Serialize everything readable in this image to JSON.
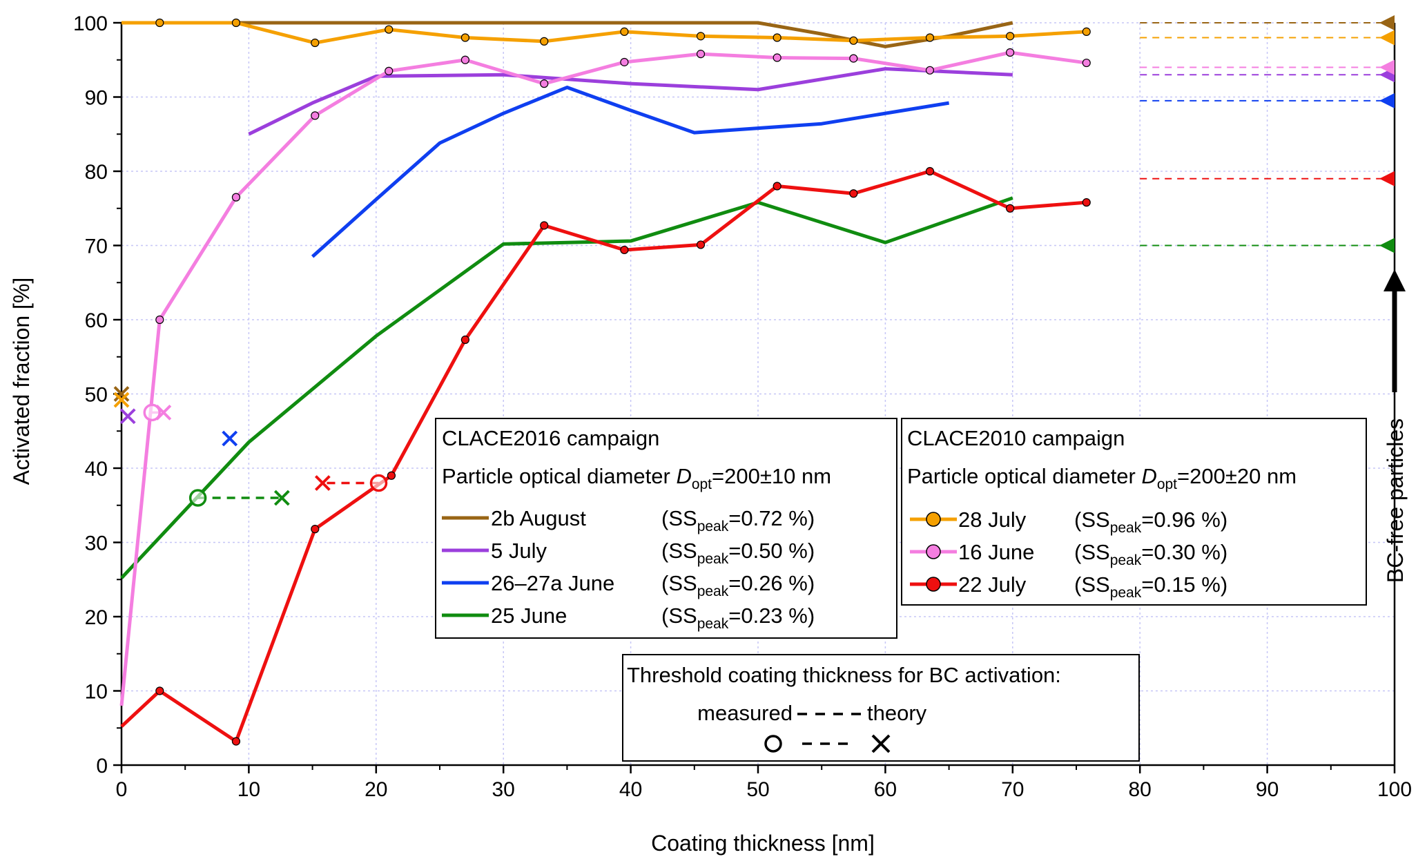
{
  "chart_data": {
    "type": "line",
    "xlabel": "Coating thickness [nm]",
    "ylabel": "Activated fraction [%]",
    "xlim": [
      0,
      100
    ],
    "ylim": [
      0,
      100
    ],
    "xticks": [
      "0",
      "10",
      "20",
      "30",
      "40",
      "50",
      "60",
      "70",
      "80",
      "90",
      "100"
    ],
    "yticks": [
      "0",
      "10",
      "20",
      "30",
      "40",
      "50",
      "60",
      "70",
      "80",
      "90",
      "100"
    ],
    "grid": true,
    "bc_free_label": "BC-free particles",
    "series": [
      {
        "name": "2b August",
        "ss": "0.72 %",
        "campaign": "CLACE2016",
        "color": "#996515",
        "markers": false,
        "points": [
          [
            0,
            100
          ],
          [
            10,
            100
          ],
          [
            20,
            100
          ],
          [
            30,
            100
          ],
          [
            40,
            100
          ],
          [
            50,
            100
          ],
          [
            55,
            98.5
          ],
          [
            60,
            96.8
          ],
          [
            65,
            98.2
          ],
          [
            70,
            100
          ]
        ],
        "bc_free": 100
      },
      {
        "name": "5 July",
        "ss": "0.50 %",
        "campaign": "CLACE2016",
        "color": "#9b3fdc",
        "markers": false,
        "points": [
          [
            10,
            85
          ],
          [
            15,
            89.2
          ],
          [
            20,
            92.8
          ],
          [
            30,
            93
          ],
          [
            40,
            91.8
          ],
          [
            50,
            91
          ],
          [
            60,
            93.8
          ],
          [
            70,
            93
          ]
        ],
        "bc_free": 93
      },
      {
        "name": "26–27a June",
        "ss": "0.26 %",
        "campaign": "CLACE2016",
        "color": "#0f3ff0",
        "markers": false,
        "points": [
          [
            15,
            68.5
          ],
          [
            20,
            76.2
          ],
          [
            25,
            83.8
          ],
          [
            30,
            87.8
          ],
          [
            35,
            91.3
          ],
          [
            40,
            88.2
          ],
          [
            45,
            85.2
          ],
          [
            55,
            86.4
          ],
          [
            65,
            89.2
          ]
        ],
        "bc_free": 89.5
      },
      {
        "name": "25 June",
        "ss": "0.23 %",
        "campaign": "CLACE2016",
        "color": "#108c10",
        "markers": false,
        "points": [
          [
            0,
            25.2
          ],
          [
            10,
            43.5
          ],
          [
            20,
            57.8
          ],
          [
            30,
            70.2
          ],
          [
            40,
            70.6
          ],
          [
            50,
            75.8
          ],
          [
            60,
            70.4
          ],
          [
            70,
            76.4
          ]
        ],
        "bc_free": 70
      },
      {
        "name": "28 July",
        "ss": "0.96 %",
        "campaign": "CLACE2010",
        "color": "#f5a000",
        "markers": true,
        "points": [
          [
            0,
            100
          ],
          [
            3,
            100
          ],
          [
            9,
            100
          ],
          [
            15.2,
            97.3
          ],
          [
            21,
            99.1
          ],
          [
            27,
            98
          ],
          [
            33.2,
            97.5
          ],
          [
            39.5,
            98.8
          ],
          [
            45.5,
            98.2
          ],
          [
            51.5,
            98
          ],
          [
            57.5,
            97.6
          ],
          [
            63.5,
            98
          ],
          [
            69.8,
            98.2
          ],
          [
            75.8,
            98.8
          ]
        ],
        "bc_free": 98
      },
      {
        "name": "16 June",
        "ss": "0.30 %",
        "campaign": "CLACE2010",
        "color": "#f47ee0",
        "markers": true,
        "points": [
          [
            0,
            8
          ],
          [
            3,
            60
          ],
          [
            9,
            76.5
          ],
          [
            15.2,
            87.5
          ],
          [
            21,
            93.5
          ],
          [
            27,
            95
          ],
          [
            33.2,
            91.8
          ],
          [
            39.5,
            94.7
          ],
          [
            45.5,
            95.8
          ],
          [
            51.5,
            95.3
          ],
          [
            57.5,
            95.2
          ],
          [
            63.5,
            93.6
          ],
          [
            69.8,
            96
          ],
          [
            75.8,
            94.6
          ]
        ],
        "bc_free": 94
      },
      {
        "name": "22 July",
        "ss": "0.15 %",
        "campaign": "CLACE2010",
        "color": "#ee1010",
        "markers": true,
        "points": [
          [
            0,
            5.2
          ],
          [
            3,
            10
          ],
          [
            9,
            3.2
          ],
          [
            15.2,
            31.8
          ],
          [
            21.2,
            39
          ],
          [
            27,
            57.3
          ],
          [
            33.2,
            72.7
          ],
          [
            39.5,
            69.4
          ],
          [
            45.5,
            70.1
          ],
          [
            51.5,
            78
          ],
          [
            57.5,
            77
          ],
          [
            63.5,
            80
          ],
          [
            69.8,
            75
          ],
          [
            75.8,
            75.8
          ]
        ],
        "bc_free": 79
      }
    ],
    "thresholds": [
      {
        "color": "#996515",
        "measured": null,
        "theory": [
          0,
          50
        ]
      },
      {
        "color": "#f5a000",
        "measured": null,
        "theory": [
          0,
          49.2
        ]
      },
      {
        "color": "#9b3fdc",
        "measured": null,
        "theory": [
          0.5,
          47
        ]
      },
      {
        "color": "#f47ee0",
        "measured": [
          2.4,
          47.5
        ],
        "theory": [
          3.3,
          47.5
        ]
      },
      {
        "color": "#0f3ff0",
        "measured": null,
        "theory": [
          8.5,
          44
        ]
      },
      {
        "color": "#108c10",
        "measured": [
          6,
          36
        ],
        "theory": [
          12.6,
          36
        ]
      },
      {
        "color": "#ee1010",
        "measured": [
          20.2,
          38
        ],
        "theory": [
          15.8,
          38
        ]
      }
    ]
  },
  "legend_2016": {
    "title": "CLACE2016 campaign",
    "diam_prefix": "Particle optical diameter ",
    "diam_sym": "D",
    "diam_sub": "opt",
    "diam_value": "=200±10 nm"
  },
  "legend_2010": {
    "title": "CLACE2010 campaign",
    "diam_prefix": "Particle optical diameter ",
    "diam_sym": "D",
    "diam_sub": "opt",
    "diam_value": "=200±20 nm"
  },
  "ss_label": {
    "open": "(SS",
    "sub": "peak",
    "eq": "="
  },
  "threshold_legend": {
    "title": "Threshold coating thickness for BC activation:",
    "measured": "measured",
    "theory": "theory"
  }
}
